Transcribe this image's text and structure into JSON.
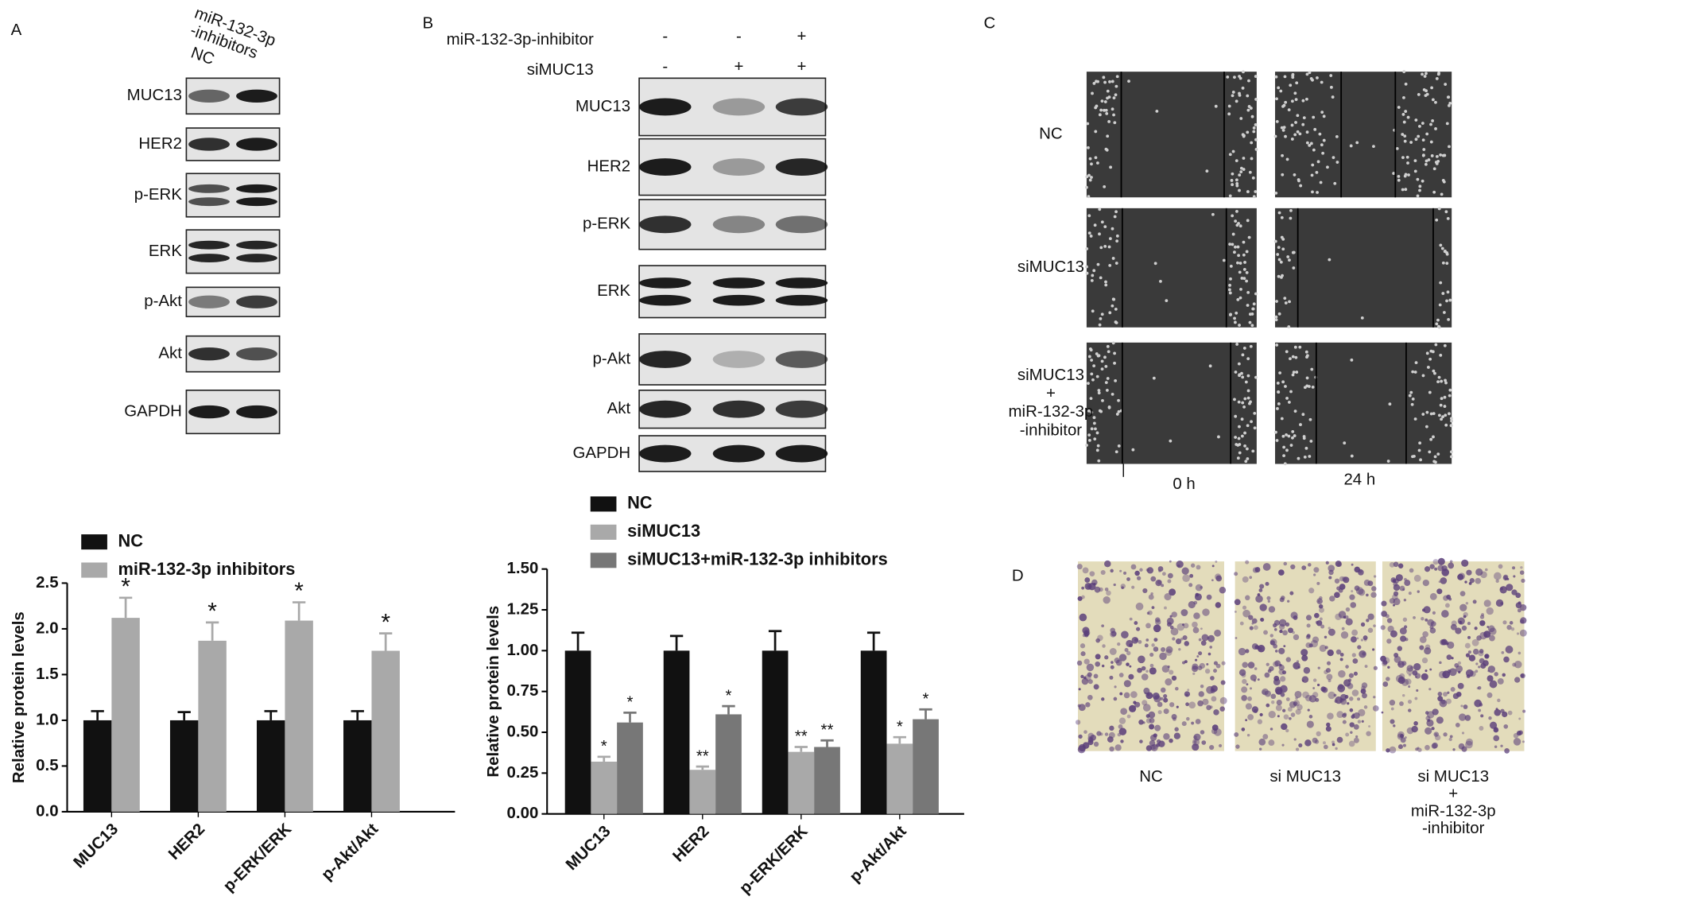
{
  "panels": {
    "A": {
      "label": "A",
      "lanes": [
        "NC",
        [
          "miR-132-3p",
          "-inhibitors"
        ]
      ],
      "rows": [
        "MUC13",
        "HER2",
        "p-ERK",
        "ERK",
        "p-Akt",
        "Akt",
        "GAPDH"
      ]
    },
    "B": {
      "label": "B",
      "conditions": [
        {
          "name": "miR-132-3p-inhibitor",
          "signs": [
            "-",
            "-",
            "+"
          ]
        },
        {
          "name": "siMUC13",
          "signs": [
            "-",
            "+",
            "+"
          ]
        }
      ],
      "rows": [
        "MUC13",
        "HER2",
        "p-ERK",
        "ERK",
        "p-Akt",
        "Akt",
        "GAPDH"
      ]
    },
    "C": {
      "label": "C",
      "rows": [
        [
          "NC"
        ],
        [
          "siMUC13"
        ],
        [
          "siMUC13",
          "+",
          "miR-132-3p",
          "-inhibitor"
        ]
      ],
      "columns": [
        "0 h",
        "24 h"
      ]
    },
    "D": {
      "label": "D",
      "columns": [
        [
          "NC"
        ],
        [
          "si MUC13"
        ],
        [
          "si MUC13",
          "+",
          "miR-132-3p",
          "-inhibitor"
        ]
      ]
    }
  },
  "chart_data": [
    {
      "type": "bar",
      "ylabel": "Relative protein levels",
      "categories": [
        "MUC13",
        "HER2",
        "p-ERK/ERK",
        "p-Akt/Akt"
      ],
      "series": [
        {
          "name": "NC",
          "color": "#111111",
          "values": [
            1,
            1,
            1,
            1
          ],
          "errors": [
            0.1,
            0.09,
            0.1,
            0.1
          ]
        },
        {
          "name": "miR-132-3p inhibitors",
          "color": "#a9a9a9",
          "values": [
            2.12,
            1.87,
            2.09,
            1.76
          ],
          "errors": [
            0.22,
            0.2,
            0.2,
            0.19
          ],
          "annotations": [
            "*",
            "*",
            "*",
            "*"
          ]
        }
      ],
      "ylim": [
        0,
        2.5
      ],
      "yticks": [
        {
          "value": 0,
          "label": "0.0"
        },
        {
          "value": 0.5,
          "label": "0.5"
        },
        {
          "value": 1,
          "label": "1.0"
        },
        {
          "value": 1.5,
          "label": "1.5"
        },
        {
          "value": 2,
          "label": "2.0"
        },
        {
          "value": 2.5,
          "label": "2.5"
        }
      ]
    },
    {
      "type": "bar",
      "ylabel": "Relative protein levels",
      "categories": [
        "MUC13",
        "HER2",
        "p-ERK/ERK",
        "p-Akt/Akt"
      ],
      "series": [
        {
          "name": "NC",
          "color": "#111111",
          "values": [
            1,
            1,
            1,
            1
          ],
          "errors": [
            0.11,
            0.09,
            0.12,
            0.11
          ]
        },
        {
          "name": "siMUC13",
          "color": "#a9a9a9",
          "values": [
            0.32,
            0.27,
            0.38,
            0.43
          ],
          "errors": [
            0.03,
            0.02,
            0.03,
            0.04
          ],
          "annotations": [
            "*",
            "**",
            "**",
            "*"
          ]
        },
        {
          "name": "siMUC13+miR-132-3p inhibitors",
          "color": "#777777",
          "values": [
            0.56,
            0.61,
            0.41,
            0.58
          ],
          "errors": [
            0.06,
            0.05,
            0.04,
            0.06
          ],
          "annotations": [
            "*",
            "*",
            "**",
            "*"
          ]
        }
      ],
      "ylim": [
        0,
        1.5
      ],
      "yticks": [
        {
          "value": 0,
          "label": "0.00"
        },
        {
          "value": 0.25,
          "label": "0.25"
        },
        {
          "value": 0.5,
          "label": "0.50"
        },
        {
          "value": 0.75,
          "label": "0.75"
        },
        {
          "value": 1,
          "label": "1.00"
        },
        {
          "value": 1.25,
          "label": "1.25"
        },
        {
          "value": 1.5,
          "label": "1.50"
        }
      ]
    }
  ]
}
